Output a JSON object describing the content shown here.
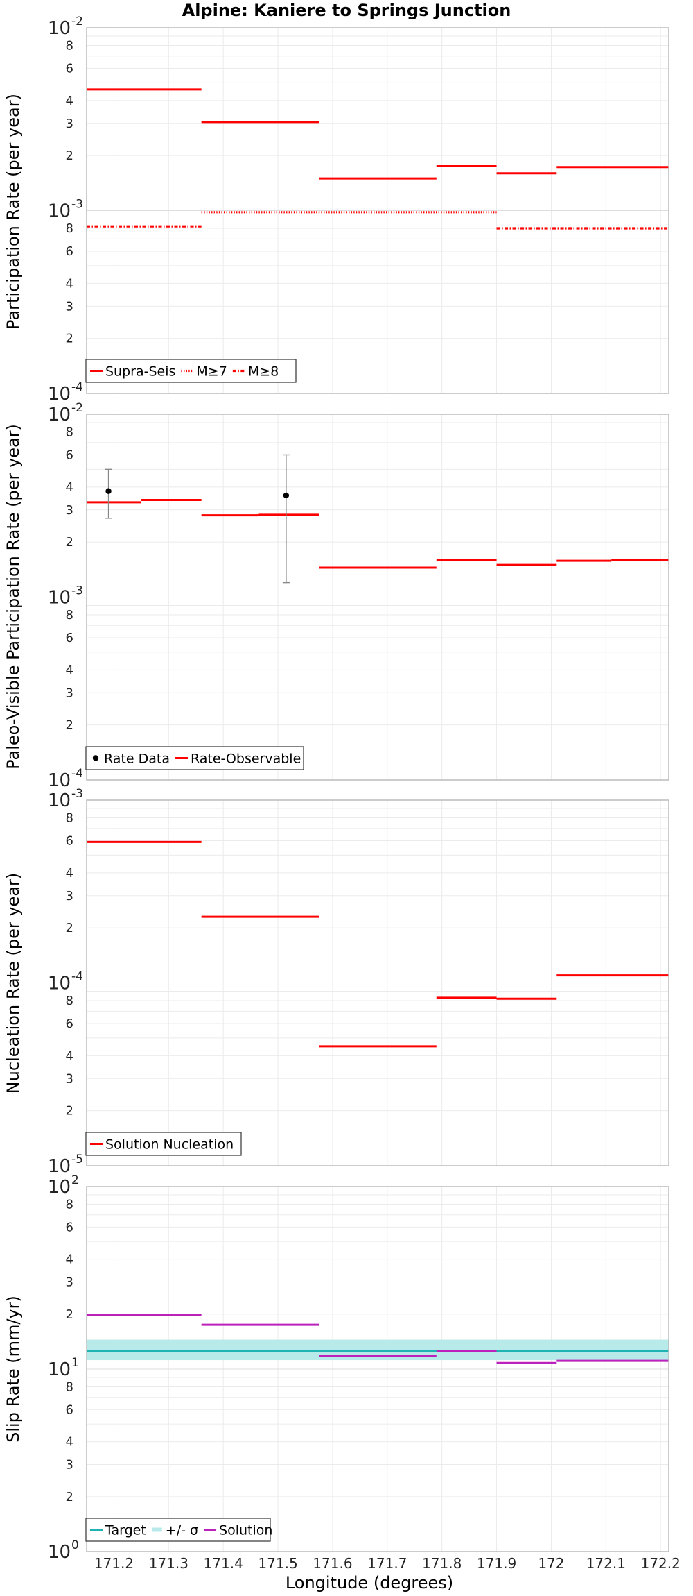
{
  "chart_data": {
    "title": "Alpine: Kaniere to Springs Junction",
    "xlabel": "Longitude (degrees)",
    "xlim": [
      171.15,
      172.215
    ],
    "xticks": [
      "171.2",
      "171.3",
      "171.4",
      "171.5",
      "171.6",
      "171.7",
      "171.8",
      "171.9",
      "172",
      "172.1",
      "172.2"
    ],
    "colors": {
      "red": "#ff0000",
      "cyan": "#1fb3b3",
      "band": "#b8eaea",
      "magenta": "#bb22bb",
      "grid": "#ebebeb",
      "axis": "#bbbbbb",
      "errbar": "#888888"
    },
    "panels": [
      {
        "type": "line",
        "ylabel": "Participation Rate (per year)",
        "yscale": "log",
        "ylim": [
          0.0001,
          0.01
        ],
        "decades": [
          {
            "base": "10",
            "exp": "-4"
          },
          {
            "base": "10",
            "exp": "-3"
          },
          {
            "base": "10",
            "exp": "-2"
          }
        ],
        "minor_labels": [
          "2",
          "3",
          "4",
          "6",
          "8"
        ],
        "legend": [
          "Supra-Seis",
          "M≥7",
          "M≥8"
        ],
        "series": [
          {
            "name": "Supra-Seis",
            "style": "solid",
            "segments": [
              [
                171.15,
                171.36,
                0.0046
              ],
              [
                171.36,
                171.575,
                0.00305
              ],
              [
                171.575,
                171.79,
                0.0015
              ],
              [
                171.79,
                171.9,
                0.00175
              ],
              [
                171.9,
                172.01,
                0.0016
              ],
              [
                172.01,
                172.215,
                0.00173
              ]
            ]
          },
          {
            "name": "M≥7",
            "style": "dotted",
            "segments": [
              [
                171.36,
                171.9,
                0.00098
              ]
            ]
          },
          {
            "name": "M≥8",
            "style": "dashdot",
            "segments": [
              [
                171.15,
                171.36,
                0.00082
              ],
              [
                171.9,
                172.215,
                0.0008
              ]
            ]
          }
        ]
      },
      {
        "type": "line",
        "ylabel": "Paleo-Visible Participation Rate (per year)",
        "yscale": "log",
        "ylim": [
          0.0001,
          0.01
        ],
        "decades": [
          {
            "base": "10",
            "exp": "-4"
          },
          {
            "base": "10",
            "exp": "-3"
          },
          {
            "base": "10",
            "exp": "-2"
          }
        ],
        "minor_labels": [
          "2",
          "3",
          "4",
          "6",
          "8"
        ],
        "legend": [
          "Rate Data",
          "Rate-Observable"
        ],
        "points": [
          {
            "x": 171.19,
            "y": 0.0038,
            "low": 0.0027,
            "high": 0.005
          },
          {
            "x": 171.515,
            "y": 0.0036,
            "low": 0.0012,
            "high": 0.006
          }
        ],
        "series": [
          {
            "name": "Rate-Observable",
            "style": "solid",
            "segments": [
              [
                171.15,
                171.25,
                0.0033
              ],
              [
                171.25,
                171.36,
                0.0034
              ],
              [
                171.36,
                171.465,
                0.0028
              ],
              [
                171.465,
                171.575,
                0.00282
              ],
              [
                171.575,
                171.79,
                0.00145
              ],
              [
                171.79,
                171.9,
                0.0016
              ],
              [
                171.9,
                172.01,
                0.0015
              ],
              [
                172.01,
                172.11,
                0.00158
              ],
              [
                172.11,
                172.215,
                0.0016
              ]
            ]
          }
        ]
      },
      {
        "type": "line",
        "ylabel": "Nucleation Rate (per year)",
        "yscale": "log",
        "ylim": [
          1e-05,
          0.001
        ],
        "decades": [
          {
            "base": "10",
            "exp": "-5"
          },
          {
            "base": "10",
            "exp": "-4"
          },
          {
            "base": "10",
            "exp": "-3"
          }
        ],
        "minor_labels": [
          "2",
          "3",
          "4",
          "6",
          "8"
        ],
        "legend": [
          "Solution Nucleation"
        ],
        "series": [
          {
            "name": "Solution Nucleation",
            "style": "solid",
            "segments": [
              [
                171.15,
                171.36,
                0.00059
              ],
              [
                171.36,
                171.575,
                0.00023
              ],
              [
                171.575,
                171.79,
                4.5e-05
              ],
              [
                171.79,
                171.9,
                8.3e-05
              ],
              [
                171.9,
                172.01,
                8.2e-05
              ],
              [
                172.01,
                172.215,
                0.00011
              ]
            ]
          }
        ]
      },
      {
        "type": "line",
        "ylabel": "Slip Rate (mm/yr)",
        "yscale": "log",
        "ylim": [
          1,
          100
        ],
        "decades": [
          {
            "base": "10",
            "exp": "0"
          },
          {
            "base": "10",
            "exp": "1"
          },
          {
            "base": "10",
            "exp": "2"
          }
        ],
        "minor_labels": [
          "2",
          "3",
          "4",
          "6",
          "8"
        ],
        "legend": [
          "Target",
          "+/- σ",
          "Solution"
        ],
        "band": {
          "x": [
            171.15,
            172.215
          ],
          "low": 11.2,
          "high": 14.5
        },
        "series": [
          {
            "name": "Target",
            "style": "target",
            "segments": [
              [
                171.15,
                172.215,
                12.6
              ]
            ]
          },
          {
            "name": "Solution",
            "style": "solution",
            "segments": [
              [
                171.15,
                171.36,
                19.7
              ],
              [
                171.36,
                171.575,
                17.5
              ],
              [
                171.575,
                171.79,
                11.8
              ],
              [
                171.79,
                171.9,
                12.6
              ],
              [
                171.9,
                172.01,
                10.8
              ],
              [
                172.01,
                172.215,
                11.1
              ]
            ]
          }
        ]
      }
    ]
  }
}
